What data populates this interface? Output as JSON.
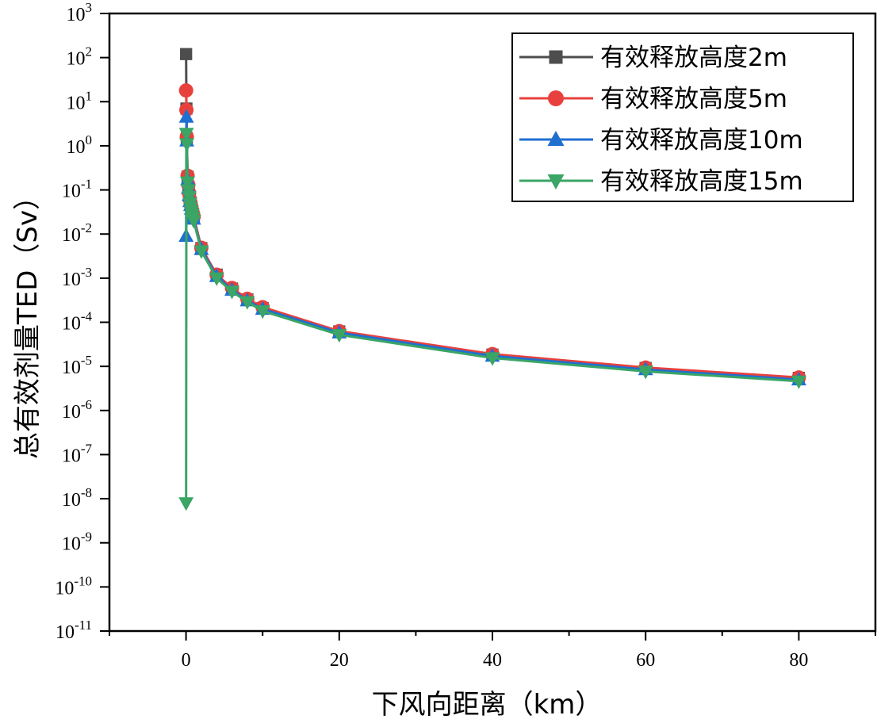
{
  "chart_data": {
    "type": "line",
    "title": "",
    "xlabel": "下风向距离（km）",
    "ylabel": "总有效剂量TED（Sv）",
    "xlim": [
      -10,
      90
    ],
    "ylim": [
      1e-11,
      1000
    ],
    "yscale": "log",
    "grid": false,
    "legend_position": "top-right",
    "x_ticks": [
      0,
      20,
      40,
      60,
      80
    ],
    "x_tick_labels": [
      "0",
      "20",
      "40",
      "60",
      "80"
    ],
    "y_ticks": [
      {
        "mantissa": "10",
        "exponent": "3"
      },
      {
        "mantissa": "10",
        "exponent": "2"
      },
      {
        "mantissa": "10",
        "exponent": "1"
      },
      {
        "mantissa": "10",
        "exponent": "0"
      },
      {
        "mantissa": "10",
        "exponent": "-1"
      },
      {
        "mantissa": "10",
        "exponent": "-2"
      },
      {
        "mantissa": "10",
        "exponent": "-3"
      },
      {
        "mantissa": "10",
        "exponent": "-4"
      },
      {
        "mantissa": "10",
        "exponent": "-5"
      },
      {
        "mantissa": "10",
        "exponent": "-6"
      },
      {
        "mantissa": "10",
        "exponent": "-7"
      },
      {
        "mantissa": "10",
        "exponent": "-8"
      },
      {
        "mantissa": "10",
        "exponent": "-9"
      },
      {
        "mantissa": "10",
        "exponent": "-10"
      },
      {
        "mantissa": "10",
        "exponent": "-11"
      }
    ],
    "series": [
      {
        "name": "有效释放高度2m",
        "color": "#4d4d4d",
        "marker": "square",
        "points": [
          [
            0.01,
            120
          ],
          [
            0.05,
            7
          ],
          [
            0.1,
            1.5
          ],
          [
            0.2,
            0.2
          ],
          [
            0.3,
            0.12
          ],
          [
            0.4,
            0.08
          ],
          [
            0.5,
            0.06
          ],
          [
            0.6,
            0.05
          ],
          [
            0.7,
            0.04
          ],
          [
            0.8,
            0.033
          ],
          [
            0.9,
            0.028
          ],
          [
            1,
            0.024
          ],
          [
            2,
            0.0048
          ],
          [
            4,
            0.0012
          ],
          [
            6,
            0.00058
          ],
          [
            8,
            0.00033
          ],
          [
            10,
            0.00021
          ],
          [
            20,
            6.2e-05
          ],
          [
            40,
            1.85e-05
          ],
          [
            60,
            9.2e-06
          ],
          [
            80,
            5.5e-06
          ]
        ]
      },
      {
        "name": "有效释放高度5m",
        "color": "#e8403c",
        "marker": "circle",
        "points": [
          [
            0.01,
            18
          ],
          [
            0.05,
            6.5
          ],
          [
            0.1,
            1.6
          ],
          [
            0.2,
            0.21
          ],
          [
            0.3,
            0.13
          ],
          [
            0.4,
            0.085
          ],
          [
            0.5,
            0.062
          ],
          [
            0.6,
            0.05
          ],
          [
            0.7,
            0.041
          ],
          [
            0.8,
            0.034
          ],
          [
            0.9,
            0.029
          ],
          [
            1,
            0.025
          ],
          [
            2,
            0.0049
          ],
          [
            4,
            0.0012
          ],
          [
            6,
            0.0006
          ],
          [
            8,
            0.00034
          ],
          [
            10,
            0.00022
          ],
          [
            20,
            6.3e-05
          ],
          [
            40,
            1.9e-05
          ],
          [
            60,
            9.4e-06
          ],
          [
            80,
            5.6e-06
          ]
        ]
      },
      {
        "name": "有效释放高度10m",
        "color": "#1f6fd1",
        "marker": "triangle-up",
        "points": [
          [
            0.01,
            0.009
          ],
          [
            0.05,
            4.5
          ],
          [
            0.1,
            1.3
          ],
          [
            0.2,
            0.17
          ],
          [
            0.3,
            0.11
          ],
          [
            0.4,
            0.075
          ],
          [
            0.5,
            0.055
          ],
          [
            0.6,
            0.045
          ],
          [
            0.7,
            0.037
          ],
          [
            0.8,
            0.031
          ],
          [
            0.9,
            0.026
          ],
          [
            1,
            0.022
          ],
          [
            2,
            0.0045
          ],
          [
            4,
            0.0011
          ],
          [
            6,
            0.00054
          ],
          [
            8,
            0.00031
          ],
          [
            10,
            0.0002
          ],
          [
            20,
            5.8e-05
          ],
          [
            40,
            1.72e-05
          ],
          [
            60,
            8.5e-06
          ],
          [
            80,
            5e-06
          ]
        ]
      },
      {
        "name": "有效释放高度15m",
        "color": "#3aa565",
        "marker": "triangle-down",
        "points": [
          [
            0.01,
            8e-09
          ],
          [
            0.05,
            1.9
          ],
          [
            0.1,
            1.1
          ],
          [
            0.2,
            0.15
          ],
          [
            0.3,
            0.1
          ],
          [
            0.4,
            0.07
          ],
          [
            0.5,
            0.05
          ],
          [
            0.6,
            0.04
          ],
          [
            0.7,
            0.033
          ],
          [
            0.8,
            0.028
          ],
          [
            0.9,
            0.024
          ],
          [
            1,
            0.02
          ],
          [
            2,
            0.0041
          ],
          [
            4,
            0.001
          ],
          [
            6,
            0.0005
          ],
          [
            8,
            0.00029
          ],
          [
            10,
            0.00018
          ],
          [
            20,
            5.2e-05
          ],
          [
            40,
            1.55e-05
          ],
          [
            60,
            7.7e-06
          ],
          [
            80,
            4.6e-06
          ]
        ]
      }
    ]
  }
}
